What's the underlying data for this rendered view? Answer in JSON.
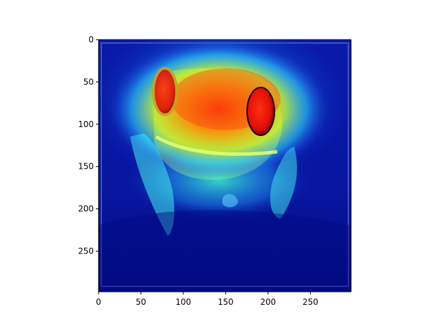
{
  "chart_data": {
    "type": "heatmap",
    "title": "",
    "xlabel": "",
    "ylabel": "",
    "image_extent": [
      0,
      298,
      298,
      0
    ],
    "xlim": [
      0,
      298
    ],
    "ylim": [
      298,
      0
    ],
    "y_axis_inverted": true,
    "x_ticks": [
      0,
      50,
      100,
      150,
      200,
      250
    ],
    "y_ticks": [
      0,
      50,
      100,
      150,
      200,
      250
    ],
    "x_tick_labels": [
      "0",
      "50",
      "100",
      "150",
      "200",
      "250"
    ],
    "y_tick_labels": [
      "0",
      "50",
      "100",
      "150",
      "200",
      "250"
    ],
    "grid": false,
    "colormap": "jet",
    "background_subject": "red-eyed tree frog photograph",
    "heat_regions": [
      {
        "name": "head",
        "cx": 145,
        "cy": 95,
        "level": 1.0
      },
      {
        "name": "left-eye",
        "cx": 80,
        "cy": 62,
        "level": 0.95
      },
      {
        "name": "right-eye",
        "cx": 195,
        "cy": 85,
        "level": 0.9
      },
      {
        "name": "upper-band",
        "cx": 150,
        "cy": 45,
        "level": 0.55
      },
      {
        "name": "front-legs",
        "cx": 150,
        "cy": 175,
        "level": 0.35
      }
    ],
    "colors": {
      "low": "#00008f",
      "mid": "#00ffff",
      "high": "#ff0000",
      "frog_eye": "#e0200f"
    }
  }
}
